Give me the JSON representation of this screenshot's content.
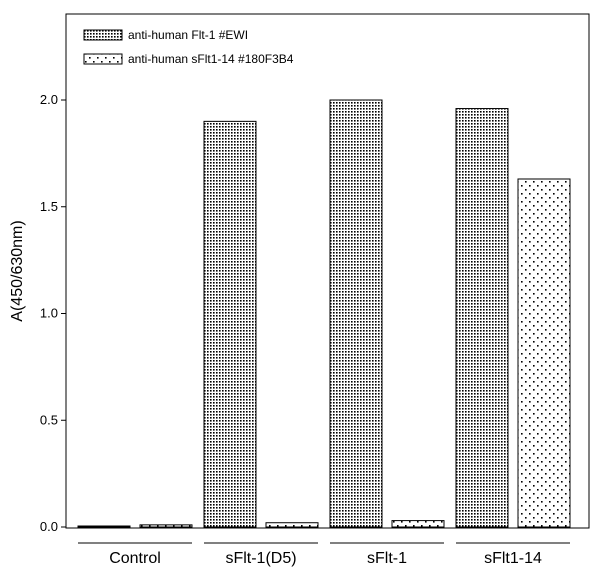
{
  "chart_data": {
    "type": "bar",
    "title": "",
    "xlabel": "",
    "ylabel": "A(450/630nm)",
    "ylim": [
      0,
      2.4
    ],
    "yticks": [
      0.0,
      0.5,
      1.0,
      1.5,
      2.0
    ],
    "ytick_labels": [
      "0.0",
      "0.5",
      "1.0",
      "1.5",
      "2.0"
    ],
    "categories": [
      "Control",
      "sFlt-1(D5)",
      "sFlt-1",
      "sFlt1-14"
    ],
    "series": [
      {
        "name": "anti-human Flt-1 #EWI",
        "values": [
          0.0,
          1.9,
          2.0,
          1.96
        ],
        "pattern": "dense-dots"
      },
      {
        "name": "anti-human sFlt1-14 #180F3B4",
        "values": [
          0.01,
          0.02,
          0.03,
          1.63
        ],
        "pattern": "sparse-dots"
      }
    ],
    "legend_position": "top-left",
    "grid": false,
    "colors": {
      "bar_stroke": "#000000",
      "pattern_ink": "#000000",
      "background": "#ffffff"
    }
  }
}
